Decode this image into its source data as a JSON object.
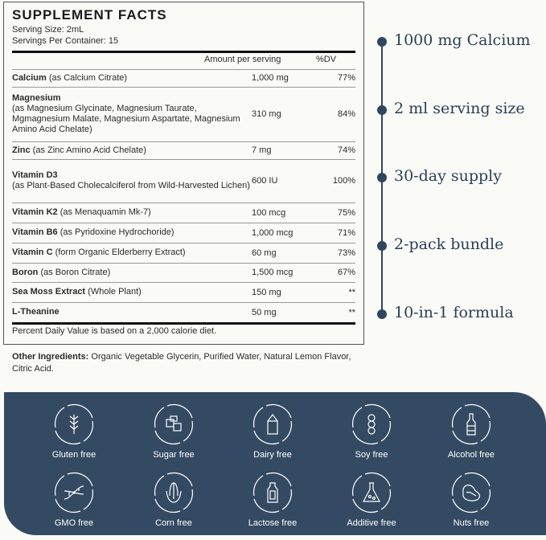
{
  "facts": {
    "title": "SUPPLEMENT FACTS",
    "serving_size": "Serving Size: 2mL",
    "servings_per_container": "Servings Per Container: 15",
    "col_amount": "Amount per serving",
    "col_dv": "%DV",
    "rows": [
      {
        "name": "Calcium",
        "detail": " (as Calcium Citrate)",
        "amount": "1,000 mg",
        "dv": "77%"
      },
      {
        "name": "Magnesium",
        "detail": "(as Magnesium Glycinate, Magnesium Taurate, Mgmagnesium Malate, Magnesium Aspartate, Magnesium Amino Acid Chelate)",
        "amount": "310 mg",
        "dv": "84%"
      },
      {
        "name": "Zinc",
        "detail": " (as Zinc Amino Acid Chelate)",
        "amount": "7 mg",
        "dv": "74%"
      },
      {
        "name": "Vitamin D3",
        "detail": "(as Plant-Based Cholecalciferol from Wild-Harvested Lichen)",
        "amount": "600 IU",
        "dv": "100%"
      },
      {
        "name": "Vitamin K2",
        "detail": " (as Menaquamin Mk-7)",
        "amount": "100 mcg",
        "dv": "75%"
      },
      {
        "name": "Vitamin B6",
        "detail": " (as Pyridoxine Hydrochoride)",
        "amount": "1,000 mcg",
        "dv": "71%"
      },
      {
        "name": "Vitamin C",
        "detail": " (form Organic Elderberry Extract)",
        "amount": "60 mg",
        "dv": "73%"
      },
      {
        "name": "Boron",
        "detail": " (as Boron Citrate)",
        "amount": "1,500 mcg",
        "dv": "67%"
      },
      {
        "name": "Sea Moss Extract",
        "detail": " (Whole Plant)",
        "amount": "150 mg",
        "dv": "**"
      },
      {
        "name": "L-Theanine",
        "detail": "",
        "amount": "50 mg",
        "dv": "**"
      }
    ],
    "footnote": "Percent Daily Value is based on a 2,000 calorie diet."
  },
  "other": {
    "label": "Other Ingredients:",
    "text": " Organic Vegetable Glycerin, Purified Water, Natural Lemon Flavor, Citric Acid."
  },
  "highlights": [
    "1000 mg Calcium",
    "2 ml serving size",
    "30-day supply",
    "2-pack bundle",
    "10-in-1 formula"
  ],
  "badges": [
    {
      "label": "Gluten free",
      "icon": "wheat-icon"
    },
    {
      "label": "Sugar free",
      "icon": "sugar-cubes-icon"
    },
    {
      "label": "Dairy free",
      "icon": "milk-carton-icon"
    },
    {
      "label": "Soy free",
      "icon": "soybean-icon"
    },
    {
      "label": "Alcohol free",
      "icon": "bottle-icon"
    },
    {
      "label": "GMO free",
      "icon": "dna-icon"
    },
    {
      "label": "Corn free",
      "icon": "corn-icon"
    },
    {
      "label": "Lactose free",
      "icon": "milk-bottle-icon"
    },
    {
      "label": "Additive free",
      "icon": "flask-icon"
    },
    {
      "label": "Nuts free",
      "icon": "nut-icon"
    }
  ],
  "colors": {
    "navy": "#344a63",
    "timeline": "#2e4660"
  }
}
